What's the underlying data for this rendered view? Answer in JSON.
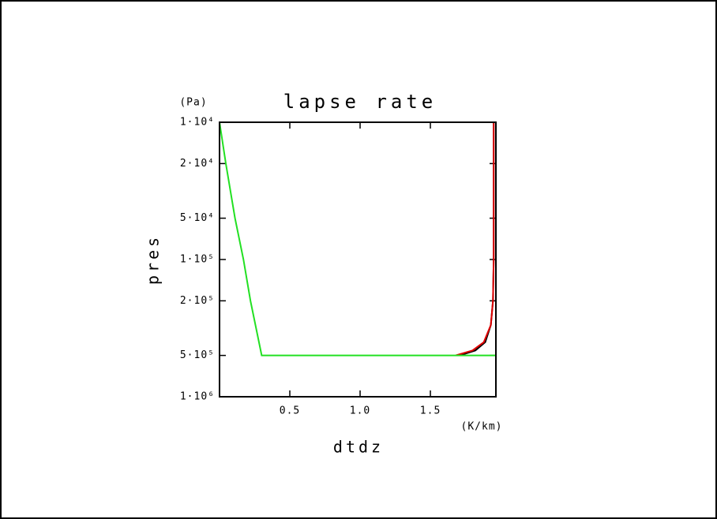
{
  "chart_data": {
    "type": "line",
    "title": "lapse rate",
    "xlabel": "dtdz",
    "xunit": "(K/km)",
    "ylabel": "pres",
    "yunit": "(Pa)",
    "log_y": true,
    "xlim": [
      0,
      1.966
    ],
    "xticks": [
      0.5,
      {
        "value": 1,
        "label": "1.0"
      },
      1.5
    ],
    "ylim": [
      1000000,
      10000
    ],
    "yticks": [
      {
        "value": 10000,
        "label": "1·10⁴"
      },
      {
        "value": 20000,
        "label": "2·10⁴"
      },
      {
        "value": 50000,
        "label": "5·10⁴"
      },
      {
        "value": 100000,
        "label": "1·10⁵"
      },
      {
        "value": 200000,
        "label": "2·10⁵"
      },
      {
        "value": 500000,
        "label": "5·10⁵"
      },
      {
        "value": 1000000,
        "label": "1·10⁶"
      }
    ],
    "series": [
      {
        "color": "#000000",
        "x": [
          1.95,
          1.95,
          1.945,
          1.93,
          1.89,
          1.82,
          1.71
        ],
        "values": [
          10000,
          100000,
          200000,
          300000,
          400000,
          460000,
          500000
        ]
      },
      {
        "color": "#e00000",
        "x": [
          1.95,
          1.95,
          1.945,
          1.93,
          1.88,
          1.8,
          1.68
        ],
        "values": [
          10000,
          100000,
          200000,
          300000,
          400000,
          460000,
          500000
        ]
      },
      {
        "color": "#22e022",
        "x": [
          0,
          0.045,
          0.11,
          0.17,
          0.22,
          0.3,
          1.966,
          1.966
        ],
        "values": [
          10000,
          20000,
          50000,
          100000,
          200000,
          500000,
          500000,
          1000000
        ]
      }
    ]
  }
}
